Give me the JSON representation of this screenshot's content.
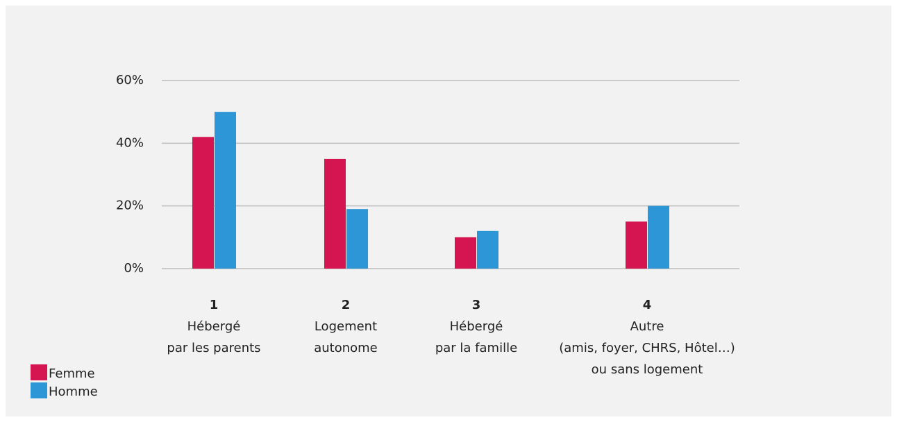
{
  "chart_data": {
    "type": "bar",
    "categories": [
      {
        "number": "1",
        "lines": [
          "Hébergé",
          "par les parents"
        ]
      },
      {
        "number": "2",
        "lines": [
          "Logement",
          "autonome"
        ]
      },
      {
        "number": "3",
        "lines": [
          "Hébergé",
          "par la famille"
        ]
      },
      {
        "number": "4",
        "lines": [
          "Autre",
          "(amis, foyer, CHRS, Hôtel…)",
          "ou sans logement"
        ]
      }
    ],
    "series": [
      {
        "name": "Femme",
        "color": "#d41552",
        "values": [
          42,
          35,
          10,
          15
        ]
      },
      {
        "name": "Homme",
        "color": "#2c96d6",
        "values": [
          50,
          19,
          12,
          20
        ]
      }
    ],
    "ylim": [
      0,
      60
    ],
    "yticks": [
      {
        "value": 0,
        "label": "0%"
      },
      {
        "value": 20,
        "label": "20%"
      },
      {
        "value": 40,
        "label": "40%"
      },
      {
        "value": 60,
        "label": "60%"
      }
    ],
    "grid": true,
    "legend": "bottom-left"
  }
}
